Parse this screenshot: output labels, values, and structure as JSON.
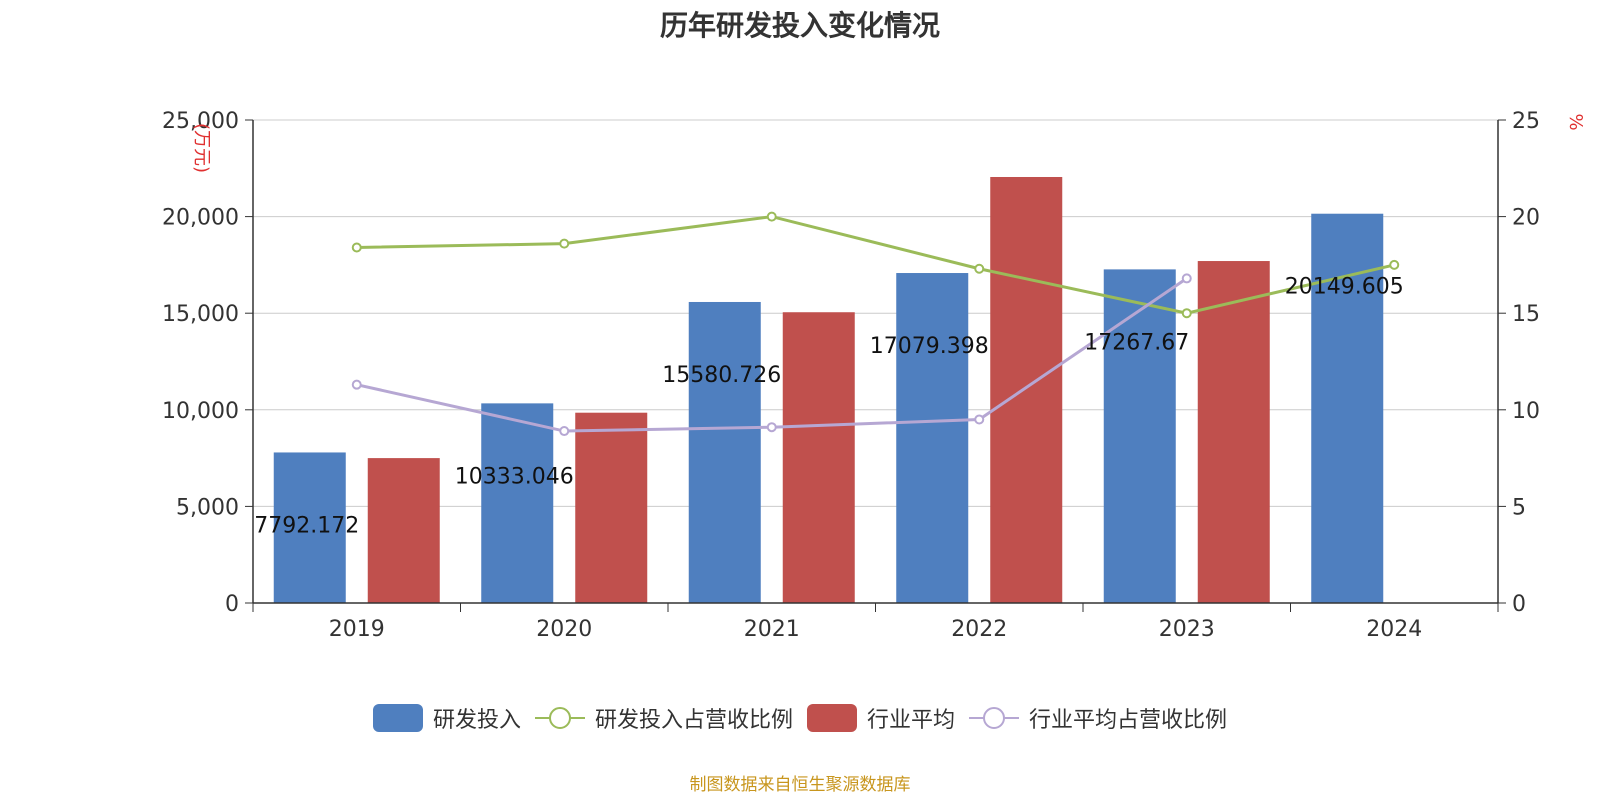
{
  "title": "历年研发投入变化情况",
  "source": "制图数据来自恒生聚源数据库",
  "colors": {
    "rd": "#4f7fbf",
    "industry": "#c0504d",
    "rd_ratio": "#9bbb59",
    "industry_ratio": "#b6a7d3"
  },
  "chart_data": {
    "type": "bar",
    "title": "历年研发投入变化情况",
    "categories": [
      "2019",
      "2020",
      "2021",
      "2022",
      "2023",
      "2024"
    ],
    "y_left": {
      "label": "(万元)",
      "min": 0,
      "max": 25000,
      "ticks": [
        "0",
        "5,000",
        "10,000",
        "15,000",
        "20,000",
        "25,000"
      ]
    },
    "y_right": {
      "label": "%",
      "min": 0,
      "max": 25,
      "ticks": [
        "0",
        "5",
        "10",
        "15",
        "20",
        "25"
      ]
    },
    "grid": true,
    "legend_position": "bottom",
    "series": [
      {
        "name": "研发投入",
        "type": "bar",
        "axis": "left",
        "values": [
          7792.172,
          10333.046,
          15580.726,
          17079.398,
          17267.67,
          20149.605
        ],
        "labels": [
          "7792.172",
          "10333.046",
          "15580.726",
          "17079.398",
          "17267.67",
          "20149.605"
        ]
      },
      {
        "name": "研发投入占营收比例",
        "type": "line",
        "axis": "right",
        "values": [
          18.4,
          18.6,
          20.0,
          17.3,
          15.0,
          17.5
        ]
      },
      {
        "name": "行业平均",
        "type": "bar",
        "axis": "left",
        "values": [
          7500,
          9850,
          15050,
          22050,
          17700,
          null
        ]
      },
      {
        "name": "行业平均占营收比例",
        "type": "line",
        "axis": "right",
        "values": [
          11.3,
          8.9,
          9.1,
          9.5,
          16.8,
          null
        ]
      }
    ]
  }
}
